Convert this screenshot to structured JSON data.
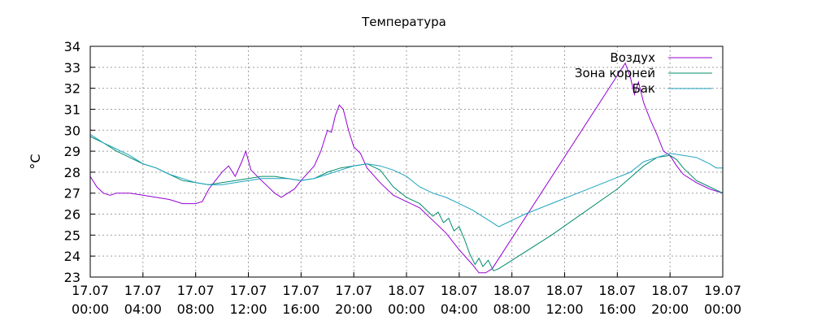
{
  "chart_data": {
    "type": "line",
    "title": "Температура",
    "ylabel": "°C",
    "xlabel": "",
    "ylim": [
      23,
      34
    ],
    "xlim": [
      0,
      48
    ],
    "x_unit": "hours from 17.07 00:00",
    "yticks": [
      23,
      24,
      25,
      26,
      27,
      28,
      29,
      30,
      31,
      32,
      33,
      34
    ],
    "xticks": [
      {
        "x": 0,
        "date": "17.07",
        "time": "00:00"
      },
      {
        "x": 4,
        "date": "17.07",
        "time": "04:00"
      },
      {
        "x": 8,
        "date": "17.07",
        "time": "08:00"
      },
      {
        "x": 12,
        "date": "17.07",
        "time": "12:00"
      },
      {
        "x": 16,
        "date": "17.07",
        "time": "16:00"
      },
      {
        "x": 20,
        "date": "17.07",
        "time": "20:00"
      },
      {
        "x": 24,
        "date": "18.07",
        "time": "00:00"
      },
      {
        "x": 28,
        "date": "18.07",
        "time": "04:00"
      },
      {
        "x": 32,
        "date": "18.07",
        "time": "08:00"
      },
      {
        "x": 36,
        "date": "18.07",
        "time": "12:00"
      },
      {
        "x": 40,
        "date": "18.07",
        "time": "16:00"
      },
      {
        "x": 44,
        "date": "18.07",
        "time": "20:00"
      },
      {
        "x": 48,
        "date": "19.07",
        "time": "00:00"
      }
    ],
    "grid": true,
    "legend_position": "top-right",
    "series": [
      {
        "name": "Воздух",
        "color": "#9400d3",
        "points": [
          [
            0,
            27.8
          ],
          [
            0.5,
            27.3
          ],
          [
            1,
            27.0
          ],
          [
            1.5,
            26.9
          ],
          [
            2,
            27.0
          ],
          [
            3,
            27.0
          ],
          [
            4,
            26.9
          ],
          [
            5,
            26.8
          ],
          [
            6,
            26.7
          ],
          [
            7,
            26.5
          ],
          [
            8,
            26.5
          ],
          [
            8.5,
            26.6
          ],
          [
            9,
            27.2
          ],
          [
            9.5,
            27.6
          ],
          [
            10,
            28.0
          ],
          [
            10.5,
            28.3
          ],
          [
            11,
            27.8
          ],
          [
            11.5,
            28.5
          ],
          [
            11.8,
            29.0
          ],
          [
            12.2,
            28.1
          ],
          [
            13,
            27.6
          ],
          [
            14,
            27.0
          ],
          [
            14.5,
            26.8
          ],
          [
            15,
            27.0
          ],
          [
            15.5,
            27.2
          ],
          [
            16,
            27.6
          ],
          [
            17,
            28.3
          ],
          [
            17.5,
            29.0
          ],
          [
            18,
            30.0
          ],
          [
            18.3,
            29.9
          ],
          [
            18.6,
            30.7
          ],
          [
            18.9,
            31.2
          ],
          [
            19.2,
            31.0
          ],
          [
            19.6,
            30.0
          ],
          [
            20,
            29.2
          ],
          [
            20.5,
            28.9
          ],
          [
            21,
            28.2
          ],
          [
            22,
            27.5
          ],
          [
            23,
            26.9
          ],
          [
            24,
            26.6
          ],
          [
            25,
            26.3
          ],
          [
            26,
            25.7
          ],
          [
            27,
            25.1
          ],
          [
            28,
            24.3
          ],
          [
            29,
            23.6
          ],
          [
            29.5,
            23.2
          ],
          [
            30,
            23.2
          ],
          [
            30.5,
            23.4
          ],
          [
            40.6,
            33.2
          ],
          [
            41,
            32.5
          ],
          [
            41.3,
            31.7
          ],
          [
            41.6,
            32.3
          ],
          [
            42,
            31.3
          ],
          [
            42.5,
            30.5
          ],
          [
            43,
            29.8
          ],
          [
            43.5,
            29.0
          ],
          [
            44,
            28.8
          ],
          [
            44.5,
            28.3
          ],
          [
            45,
            27.9
          ],
          [
            46,
            27.5
          ],
          [
            47,
            27.2
          ],
          [
            48,
            27.0
          ]
        ]
      },
      {
        "name": "Зона корней",
        "color": "#008b6b",
        "points": [
          [
            0,
            29.7
          ],
          [
            1,
            29.4
          ],
          [
            2,
            29.0
          ],
          [
            3,
            28.7
          ],
          [
            4,
            28.4
          ],
          [
            5,
            28.2
          ],
          [
            6,
            27.9
          ],
          [
            7,
            27.6
          ],
          [
            8,
            27.5
          ],
          [
            9,
            27.4
          ],
          [
            10,
            27.5
          ],
          [
            11,
            27.6
          ],
          [
            12,
            27.7
          ],
          [
            13,
            27.8
          ],
          [
            14,
            27.8
          ],
          [
            15,
            27.7
          ],
          [
            16,
            27.6
          ],
          [
            17,
            27.7
          ],
          [
            18,
            28.0
          ],
          [
            19,
            28.2
          ],
          [
            20,
            28.3
          ],
          [
            21,
            28.4
          ],
          [
            22,
            28.1
          ],
          [
            23,
            27.3
          ],
          [
            24,
            26.8
          ],
          [
            25,
            26.5
          ],
          [
            25.5,
            26.2
          ],
          [
            26,
            25.9
          ],
          [
            26.4,
            26.1
          ],
          [
            26.8,
            25.6
          ],
          [
            27.2,
            25.8
          ],
          [
            27.6,
            25.2
          ],
          [
            28,
            25.4
          ],
          [
            28.4,
            24.8
          ],
          [
            28.8,
            24.1
          ],
          [
            29.2,
            23.6
          ],
          [
            29.5,
            23.9
          ],
          [
            29.8,
            23.5
          ],
          [
            30.2,
            23.8
          ],
          [
            30.6,
            23.3
          ],
          [
            31,
            23.4
          ],
          [
            35,
            25.0
          ],
          [
            40,
            27.2
          ],
          [
            42,
            28.3
          ],
          [
            43,
            28.7
          ],
          [
            44,
            28.8
          ],
          [
            44.5,
            28.6
          ],
          [
            45,
            28.2
          ],
          [
            46,
            27.6
          ],
          [
            47,
            27.3
          ],
          [
            48,
            27.0
          ]
        ]
      },
      {
        "name": "Бак",
        "color": "#1ca3c0",
        "points": [
          [
            0,
            29.8
          ],
          [
            1,
            29.4
          ],
          [
            2,
            29.1
          ],
          [
            3,
            28.8
          ],
          [
            4,
            28.4
          ],
          [
            5,
            28.2
          ],
          [
            6,
            27.9
          ],
          [
            7,
            27.7
          ],
          [
            8,
            27.5
          ],
          [
            9,
            27.4
          ],
          [
            10,
            27.4
          ],
          [
            11,
            27.5
          ],
          [
            12,
            27.6
          ],
          [
            13,
            27.7
          ],
          [
            14,
            27.7
          ],
          [
            15,
            27.7
          ],
          [
            16,
            27.6
          ],
          [
            17,
            27.7
          ],
          [
            18,
            27.9
          ],
          [
            19,
            28.1
          ],
          [
            20,
            28.3
          ],
          [
            21,
            28.4
          ],
          [
            22,
            28.3
          ],
          [
            23,
            28.1
          ],
          [
            24,
            27.8
          ],
          [
            25,
            27.3
          ],
          [
            26,
            27.0
          ],
          [
            27,
            26.8
          ],
          [
            28,
            26.5
          ],
          [
            29,
            26.2
          ],
          [
            30,
            25.8
          ],
          [
            31,
            25.4
          ],
          [
            33,
            26.0
          ],
          [
            35,
            26.5
          ],
          [
            37,
            27.0
          ],
          [
            39,
            27.5
          ],
          [
            41,
            28.0
          ],
          [
            42,
            28.5
          ],
          [
            43,
            28.7
          ],
          [
            44,
            28.9
          ],
          [
            45,
            28.8
          ],
          [
            46,
            28.7
          ],
          [
            47,
            28.4
          ],
          [
            47.5,
            28.2
          ],
          [
            48,
            28.2
          ]
        ]
      }
    ]
  }
}
